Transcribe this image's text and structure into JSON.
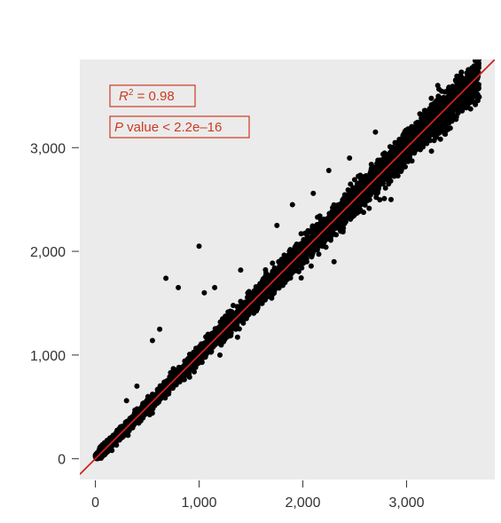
{
  "chart_data": {
    "type": "scatter",
    "title": "",
    "xlabel": "",
    "ylabel": "",
    "xlim": [
      -150,
      3850
    ],
    "ylim": [
      -200,
      3850
    ],
    "x_ticks": [
      0,
      1000,
      2000,
      3000
    ],
    "x_tick_labels": [
      "0",
      "1,000",
      "2,000",
      "3,000"
    ],
    "y_ticks": [
      0,
      1000,
      2000,
      3000
    ],
    "y_tick_labels": [
      "0",
      "1,000",
      "2,000",
      "3,000"
    ],
    "grid": false,
    "background": "#ebebeb",
    "point_color": "#000000",
    "fit_line": {
      "color": "#cc2222",
      "from": [
        -150,
        -150
      ],
      "to": [
        3850,
        3850
      ]
    },
    "annotations": {
      "r2_prefix": "R",
      "r2_sup": "2",
      "r2_value": " = 0.98",
      "p_prefix": "P",
      "p_value": " value < 2.2e–16",
      "color": "#cc3a22"
    },
    "point_cloud": {
      "count": 6000,
      "x_range": [
        0,
        3700
      ],
      "spread_at_min": 40,
      "spread_at_max": 170
    },
    "outliers": [
      {
        "x": 1000,
        "y": 2050
      },
      {
        "x": 680,
        "y": 1740
      },
      {
        "x": 800,
        "y": 1650
      },
      {
        "x": 1050,
        "y": 1600
      },
      {
        "x": 1150,
        "y": 1650
      },
      {
        "x": 550,
        "y": 1140
      },
      {
        "x": 620,
        "y": 1250
      },
      {
        "x": 1400,
        "y": 1820
      },
      {
        "x": 1900,
        "y": 2450
      },
      {
        "x": 2100,
        "y": 2560
      },
      {
        "x": 2450,
        "y": 2900
      },
      {
        "x": 2250,
        "y": 2780
      },
      {
        "x": 1750,
        "y": 2250
      },
      {
        "x": 2700,
        "y": 3150
      },
      {
        "x": 3300,
        "y": 3600
      },
      {
        "x": 1200,
        "y": 1000
      },
      {
        "x": 2300,
        "y": 1900
      },
      {
        "x": 2850,
        "y": 2500
      },
      {
        "x": 400,
        "y": 700
      },
      {
        "x": 300,
        "y": 560
      }
    ]
  }
}
